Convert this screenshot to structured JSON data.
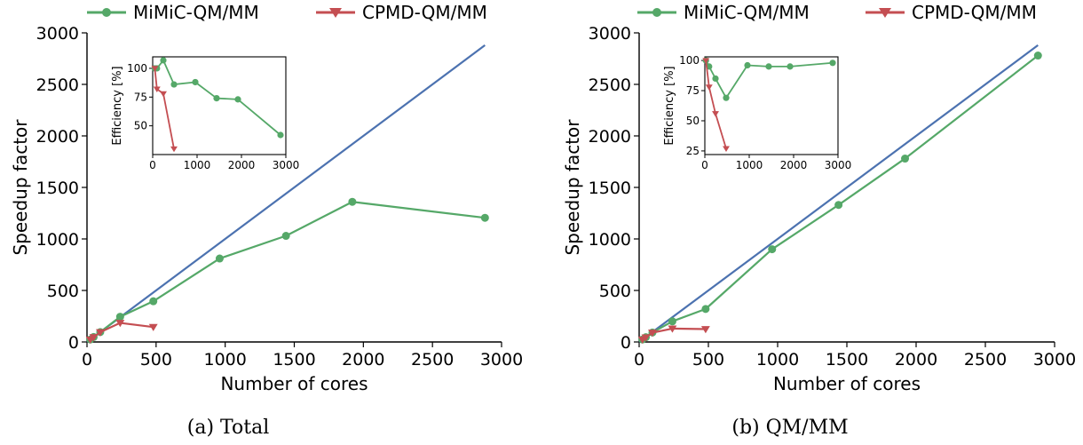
{
  "legend": [
    {
      "name": "MiMiC-QM/MM",
      "color": "#55a868",
      "marker": "circle"
    },
    {
      "name": "CPMD-QM/MM",
      "color": "#c44e52",
      "marker": "triangle-down"
    }
  ],
  "ideal_color": "#4c72b0",
  "chart_data": [
    {
      "type": "line",
      "caption": "(a) Total",
      "xlabel": "Number of cores",
      "ylabel": "Speedup factor",
      "xlim": [
        0,
        3000
      ],
      "ylim": [
        0,
        3000
      ],
      "xticks": [
        0,
        500,
        1000,
        1500,
        2000,
        2500,
        3000
      ],
      "yticks": [
        0,
        500,
        1000,
        1500,
        2000,
        2500,
        3000
      ],
      "ideal": {
        "x": [
          0,
          2880
        ],
        "y": [
          0,
          2880
        ]
      },
      "series": [
        {
          "name": "MiMiC-QM/MM",
          "x": [
            24,
            48,
            96,
            240,
            480,
            960,
            1440,
            1920,
            2880
          ],
          "y": [
            24,
            48,
            96,
            245,
            395,
            810,
            1030,
            1360,
            1205
          ]
        },
        {
          "name": "CPMD-QM/MM",
          "x": [
            24,
            48,
            96,
            240,
            480
          ],
          "y": [
            24,
            46,
            95,
            185,
            145
          ]
        }
      ],
      "inset": {
        "ylabel": "Efficiency [%]",
        "xlim": [
          0,
          3000
        ],
        "ylim": [
          25,
          110
        ],
        "xticks": [
          0,
          1000,
          2000,
          3000
        ],
        "yticks": [
          50,
          75,
          100
        ],
        "series": [
          {
            "name": "MiMiC-QM/MM",
            "x": [
              48,
              96,
              240,
              480,
              960,
              1440,
              1920,
              2880
            ],
            "y": [
              100,
              100,
              107,
              86,
              88,
              74,
              73,
              42
            ]
          },
          {
            "name": "CPMD-QM/MM",
            "x": [
              48,
              96,
              240,
              480
            ],
            "y": [
              100,
              82,
              78,
              30
            ]
          }
        ]
      }
    },
    {
      "type": "line",
      "caption": "(b) QM/MM",
      "xlabel": "Number of cores",
      "ylabel": "Speedup factor",
      "xlim": [
        0,
        3000
      ],
      "ylim": [
        0,
        3000
      ],
      "xticks": [
        0,
        500,
        1000,
        1500,
        2000,
        2500,
        3000
      ],
      "yticks": [
        0,
        500,
        1000,
        1500,
        2000,
        2500,
        3000
      ],
      "ideal": {
        "x": [
          0,
          2880
        ],
        "y": [
          0,
          2880
        ]
      },
      "series": [
        {
          "name": "MiMiC-QM/MM",
          "x": [
            24,
            48,
            96,
            240,
            480,
            960,
            1440,
            1920,
            2880
          ],
          "y": [
            24,
            46,
            92,
            200,
            320,
            900,
            1330,
            1780,
            2780
          ]
        },
        {
          "name": "CPMD-QM/MM",
          "x": [
            24,
            48,
            96,
            240,
            480
          ],
          "y": [
            24,
            44,
            90,
            130,
            125
          ]
        }
      ],
      "inset": {
        "ylabel": "Efficiency [%]",
        "xlim": [
          0,
          3000
        ],
        "ylim": [
          22,
          103
        ],
        "xticks": [
          0,
          1000,
          2000,
          3000
        ],
        "yticks": [
          25,
          50,
          75,
          100
        ],
        "series": [
          {
            "name": "MiMiC-QM/MM",
            "x": [
              24,
              96,
              240,
              480,
              960,
              1440,
              1920,
              2880
            ],
            "y": [
              100,
              95,
              85,
              69,
              96,
              95,
              95,
              98
            ]
          },
          {
            "name": "CPMD-QM/MM",
            "x": [
              24,
              96,
              240,
              480
            ],
            "y": [
              100,
              78,
              56,
              27
            ]
          }
        ]
      }
    }
  ]
}
